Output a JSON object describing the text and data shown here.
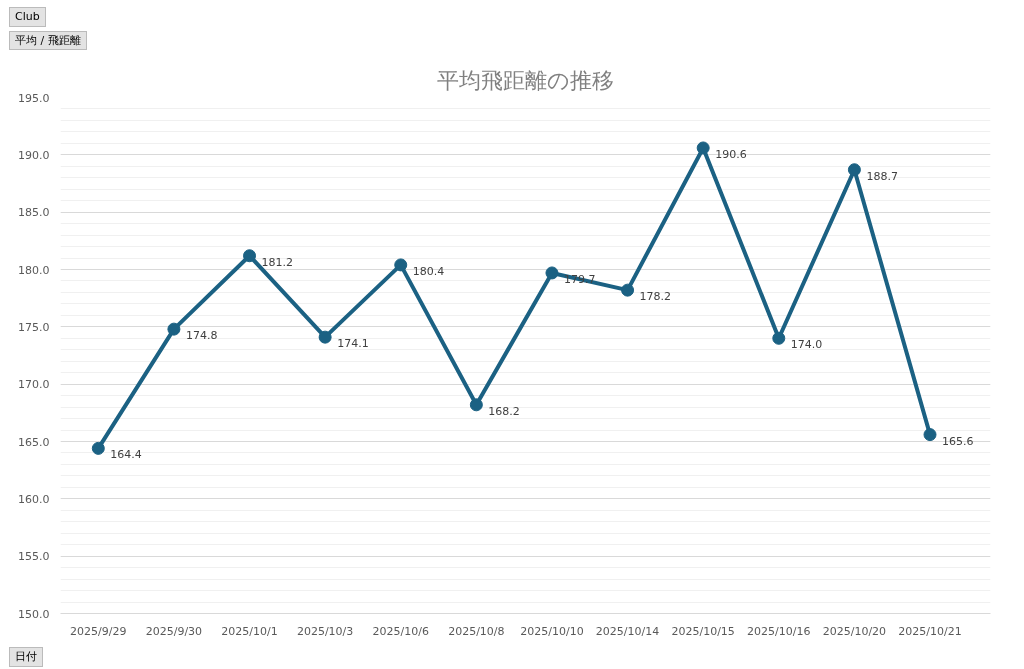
{
  "chart_data": {
    "type": "line",
    "title": "平均飛距離の推移",
    "categories": [
      "2025/9/29",
      "2025/9/30",
      "2025/10/1",
      "2025/10/3",
      "2025/10/6",
      "2025/10/8",
      "2025/10/10",
      "2025/10/14",
      "2025/10/15",
      "2025/10/16",
      "2025/10/20",
      "2025/10/21"
    ],
    "series": [
      {
        "color": "#1b6183",
        "values": [
          164.4,
          174.8,
          181.2,
          174.1,
          180.4,
          168.2,
          179.7,
          178.2,
          190.6,
          174.0,
          188.7,
          165.6
        ],
        "value_labels": [
          "164.4",
          "174.8",
          "181.2",
          "174.1",
          "180.4",
          "168.2",
          "179.7",
          "178.2",
          "190.6",
          "174.0",
          "188.7",
          "165.6"
        ]
      }
    ],
    "ylim": [
      150,
      195
    ],
    "yticks": [
      {
        "value": 150,
        "label": "150.0"
      },
      {
        "value": 155,
        "label": "155.0"
      },
      {
        "value": 160,
        "label": "160.0"
      },
      {
        "value": 165,
        "label": "165.0"
      },
      {
        "value": 170,
        "label": "170.0"
      },
      {
        "value": 175,
        "label": "175.0"
      },
      {
        "value": 180,
        "label": "180.0"
      },
      {
        "value": 185,
        "label": "185.0"
      },
      {
        "value": 190,
        "label": "190.0"
      },
      {
        "value": 195,
        "label": "195.0"
      }
    ],
    "grid": "y",
    "marker": "circle",
    "line_style": "solid",
    "annotations": [
      "Club",
      "平均 / 飛距離",
      "日付"
    ]
  }
}
